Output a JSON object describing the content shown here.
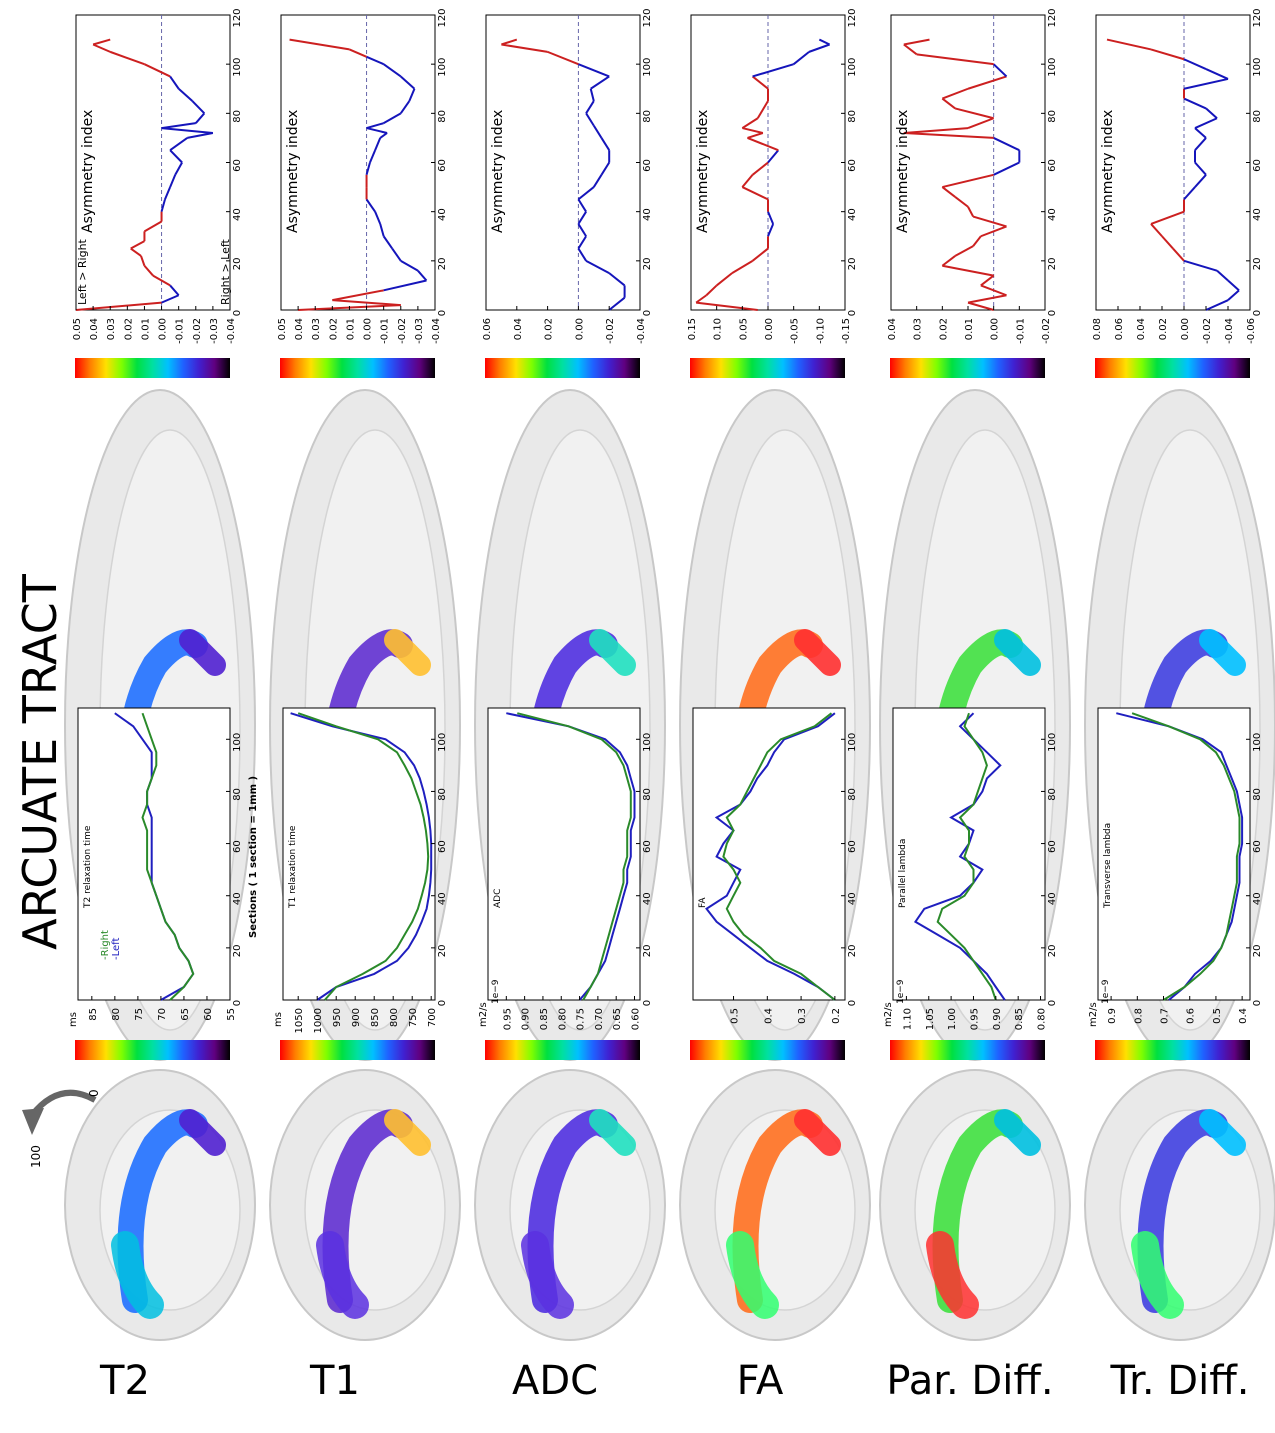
{
  "title": "ARCUATE TRACT",
  "rotation": {
    "start": "0",
    "end": "100"
  },
  "colors": {
    "left": "#1f1fbf",
    "right": "#2a8a2a",
    "asym_pos": "#cc2020",
    "asym_neg": "#1515bb"
  },
  "legend": {
    "right": "-Right",
    "left": "-Left"
  },
  "xlabel": "Sections ( 1 section = 1mm )",
  "asym_ylabel": "Asymmetry index",
  "asym_annot_top": "Left > Right",
  "asym_annot_bottom": "Right > Left",
  "chart_data": [
    {
      "id": "t2",
      "label": "T2",
      "type": "line",
      "ylabel": "T2 relaxation time",
      "unit": "ms",
      "exp": "",
      "ylim": [
        55,
        88
      ],
      "yticks": [
        "85",
        "80",
        "75",
        "70",
        "65",
        "60",
        "55"
      ],
      "ytick_vals": [
        85,
        80,
        75,
        70,
        65,
        60,
        55
      ],
      "x": [
        0,
        5,
        10,
        15,
        20,
        25,
        30,
        35,
        40,
        45,
        50,
        55,
        60,
        65,
        70,
        75,
        80,
        85,
        90,
        95,
        100,
        105,
        110
      ],
      "series": [
        {
          "name": "-Left",
          "values": [
            70,
            65,
            63,
            64,
            66,
            67,
            69,
            70,
            71,
            72,
            72,
            72,
            72,
            72,
            72,
            73,
            73,
            72,
            72,
            72,
            74,
            76,
            80
          ]
        },
        {
          "name": "-Right",
          "values": [
            68,
            65,
            63,
            64,
            66,
            67,
            69,
            70,
            71,
            72,
            73,
            73,
            73,
            73,
            74,
            73,
            73,
            72,
            71,
            71,
            72,
            73,
            74
          ]
        }
      ],
      "asym": {
        "ylim": [
          -0.04,
          0.05
        ],
        "yticks": [
          "0.05",
          "0.04",
          "0.03",
          "0.02",
          "0.01",
          "0.00",
          "-0.01",
          "-0.02",
          "-0.03",
          "-0.04"
        ],
        "ytick_vals": [
          0.05,
          0.04,
          0.03,
          0.02,
          0.01,
          0.0,
          -0.01,
          -0.02,
          -0.03,
          -0.04
        ],
        "x": [
          0,
          3,
          6,
          10,
          14,
          18,
          22,
          25,
          28,
          32,
          36,
          40,
          45,
          50,
          55,
          60,
          65,
          70,
          72,
          74,
          76,
          80,
          85,
          90,
          95,
          100,
          105,
          108,
          110
        ],
        "values": [
          0.05,
          0.0,
          -0.01,
          -0.005,
          0.005,
          0.01,
          0.012,
          0.018,
          0.01,
          0.01,
          0.0,
          0.0,
          -0.002,
          -0.005,
          -0.008,
          -0.012,
          -0.005,
          -0.015,
          -0.03,
          0.0,
          -0.02,
          -0.025,
          -0.018,
          -0.01,
          -0.005,
          0.01,
          0.03,
          0.04,
          0.03
        ]
      }
    },
    {
      "id": "t1",
      "label": "T1",
      "type": "line",
      "ylabel": "T1 relaxation time",
      "unit": "ms",
      "exp": "",
      "ylim": [
        690,
        1090
      ],
      "yticks": [
        "1050",
        "1000",
        "950",
        "900",
        "850",
        "800",
        "750",
        "700"
      ],
      "ytick_vals": [
        1050,
        1000,
        950,
        900,
        850,
        800,
        750,
        700
      ],
      "x": [
        0,
        5,
        10,
        15,
        20,
        25,
        30,
        35,
        40,
        45,
        50,
        55,
        60,
        65,
        70,
        75,
        80,
        85,
        90,
        95,
        100,
        105,
        110
      ],
      "series": [
        {
          "name": "-Left",
          "values": [
            1000,
            950,
            850,
            790,
            760,
            740,
            725,
            712,
            706,
            702,
            700,
            700,
            700,
            702,
            706,
            712,
            720,
            730,
            745,
            770,
            820,
            960,
            1070
          ]
        },
        {
          "name": "-Right",
          "values": [
            980,
            950,
            880,
            820,
            790,
            770,
            750,
            735,
            725,
            716,
            710,
            708,
            710,
            714,
            720,
            728,
            740,
            752,
            770,
            790,
            840,
            950,
            1050
          ]
        }
      ],
      "asym": {
        "ylim": [
          -0.04,
          0.05
        ],
        "yticks": [
          "0.05",
          "0.04",
          "0.03",
          "0.02",
          "0.01",
          "0.00",
          "-0.01",
          "-0.02",
          "-0.03",
          "-0.04"
        ],
        "ytick_vals": [
          0.05,
          0.04,
          0.03,
          0.02,
          0.01,
          0.0,
          -0.01,
          -0.02,
          -0.03,
          -0.04
        ],
        "x": [
          0,
          2,
          4,
          8,
          12,
          16,
          20,
          25,
          30,
          35,
          40,
          45,
          50,
          55,
          60,
          65,
          70,
          72,
          74,
          76,
          80,
          85,
          90,
          95,
          100,
          103,
          106,
          110
        ],
        "values": [
          0.04,
          -0.02,
          0.02,
          -0.01,
          -0.035,
          -0.03,
          -0.02,
          -0.015,
          -0.01,
          -0.008,
          -0.005,
          0.0,
          0.0,
          0.0,
          -0.002,
          -0.005,
          -0.008,
          -0.012,
          0.0,
          -0.01,
          -0.02,
          -0.025,
          -0.028,
          -0.02,
          -0.01,
          0.0,
          0.01,
          0.045
        ]
      }
    },
    {
      "id": "adc",
      "label": "ADC",
      "type": "line",
      "ylabel": "ADC",
      "unit": "m2/s",
      "exp": "1e−9",
      "ylim": [
        0.585,
        1.0
      ],
      "yticks": [
        "0.95",
        "0.90",
        "0.85",
        "0.80",
        "0.75",
        "0.70",
        "0.65",
        "0.60"
      ],
      "ytick_vals": [
        0.95,
        0.9,
        0.85,
        0.8,
        0.75,
        0.7,
        0.65,
        0.6
      ],
      "x": [
        0,
        5,
        10,
        15,
        20,
        25,
        30,
        35,
        40,
        45,
        50,
        55,
        60,
        65,
        70,
        75,
        80,
        85,
        90,
        95,
        100,
        105,
        110
      ],
      "series": [
        {
          "name": "-Left",
          "values": [
            0.75,
            0.72,
            0.7,
            0.68,
            0.67,
            0.66,
            0.65,
            0.64,
            0.63,
            0.62,
            0.62,
            0.61,
            0.61,
            0.61,
            0.6,
            0.6,
            0.6,
            0.61,
            0.62,
            0.64,
            0.68,
            0.78,
            0.95
          ]
        },
        {
          "name": "-Right",
          "values": [
            0.74,
            0.72,
            0.7,
            0.69,
            0.68,
            0.67,
            0.66,
            0.65,
            0.64,
            0.63,
            0.63,
            0.62,
            0.62,
            0.62,
            0.61,
            0.61,
            0.61,
            0.62,
            0.63,
            0.65,
            0.69,
            0.78,
            0.92
          ]
        }
      ],
      "asym": {
        "ylim": [
          -0.04,
          0.06
        ],
        "yticks": [
          "0.06",
          "0.04",
          "0.02",
          "0.00",
          "-0.02",
          "-0.04"
        ],
        "ytick_vals": [
          0.06,
          0.04,
          0.02,
          0.0,
          -0.02,
          -0.04
        ],
        "x": [
          0,
          5,
          10,
          15,
          20,
          25,
          30,
          35,
          40,
          45,
          50,
          55,
          60,
          65,
          70,
          75,
          80,
          85,
          90,
          95,
          100,
          105,
          108,
          110
        ],
        "values": [
          -0.02,
          -0.03,
          -0.03,
          -0.02,
          -0.005,
          0.0,
          -0.005,
          0.0,
          -0.005,
          0.0,
          -0.01,
          -0.015,
          -0.02,
          -0.02,
          -0.015,
          -0.01,
          -0.005,
          -0.01,
          -0.008,
          -0.02,
          0.0,
          0.02,
          0.05,
          0.04
        ]
      }
    },
    {
      "id": "fa",
      "label": "FA",
      "type": "line",
      "ylabel": "FA",
      "unit": "",
      "exp": "",
      "ylim": [
        0.17,
        0.62
      ],
      "yticks": [
        "0.5",
        "0.4",
        "0.3",
        "0.2"
      ],
      "ytick_vals": [
        0.5,
        0.4,
        0.3,
        0.2
      ],
      "x": [
        0,
        5,
        10,
        15,
        20,
        25,
        30,
        35,
        40,
        45,
        50,
        55,
        60,
        65,
        70,
        75,
        80,
        85,
        90,
        95,
        100,
        105,
        110
      ],
      "series": [
        {
          "name": "-Left",
          "values": [
            0.2,
            0.25,
            0.32,
            0.4,
            0.45,
            0.5,
            0.55,
            0.58,
            0.52,
            0.5,
            0.48,
            0.55,
            0.53,
            0.5,
            0.55,
            0.48,
            0.45,
            0.43,
            0.4,
            0.38,
            0.35,
            0.25,
            0.2
          ]
        },
        {
          "name": "-Right",
          "values": [
            0.2,
            0.25,
            0.3,
            0.38,
            0.42,
            0.47,
            0.5,
            0.52,
            0.5,
            0.48,
            0.5,
            0.53,
            0.52,
            0.5,
            0.52,
            0.48,
            0.46,
            0.44,
            0.42,
            0.4,
            0.36,
            0.26,
            0.21
          ]
        }
      ],
      "asym": {
        "ylim": [
          -0.15,
          0.15
        ],
        "yticks": [
          "0.15",
          "0.10",
          "0.05",
          "0.00",
          "-0.05",
          "-0.10",
          "-0.15"
        ],
        "ytick_vals": [
          0.15,
          0.1,
          0.05,
          0.0,
          -0.05,
          -0.1,
          -0.15
        ],
        "x": [
          0,
          3,
          6,
          10,
          15,
          20,
          25,
          30,
          35,
          40,
          45,
          50,
          55,
          60,
          65,
          70,
          72,
          74,
          78,
          85,
          90,
          95,
          100,
          105,
          108,
          110
        ],
        "values": [
          0.02,
          0.14,
          0.12,
          0.1,
          0.07,
          0.03,
          0.0,
          0.0,
          -0.01,
          0.0,
          0.0,
          0.05,
          0.03,
          0.0,
          -0.02,
          0.04,
          0.01,
          0.05,
          0.02,
          0.0,
          0.0,
          0.03,
          -0.05,
          -0.08,
          -0.12,
          -0.1
        ]
      }
    },
    {
      "id": "par",
      "label": "Par. Diff.",
      "type": "line",
      "ylabel": "Parallel lambda",
      "unit": "m2/s",
      "exp": "1e−9",
      "ylim": [
        0.79,
        1.13
      ],
      "yticks": [
        "1.10",
        "1.05",
        "1.00",
        "0.95",
        "0.90",
        "0.85",
        "0.80"
      ],
      "ytick_vals": [
        1.1,
        1.05,
        1.0,
        0.95,
        0.9,
        0.85,
        0.8
      ],
      "x": [
        0,
        5,
        10,
        15,
        20,
        25,
        30,
        35,
        40,
        45,
        50,
        55,
        60,
        65,
        70,
        75,
        80,
        85,
        90,
        95,
        100,
        105,
        110
      ],
      "series": [
        {
          "name": "-Left",
          "values": [
            0.88,
            0.9,
            0.92,
            0.95,
            0.98,
            1.03,
            1.08,
            1.06,
            0.98,
            0.95,
            0.93,
            0.98,
            0.96,
            0.95,
            1.0,
            0.95,
            0.93,
            0.92,
            0.89,
            0.92,
            0.95,
            0.98,
            0.95
          ]
        },
        {
          "name": "-Right",
          "values": [
            0.9,
            0.91,
            0.93,
            0.95,
            0.97,
            1.0,
            1.03,
            1.02,
            0.97,
            0.95,
            0.95,
            0.97,
            0.96,
            0.96,
            0.98,
            0.95,
            0.94,
            0.93,
            0.92,
            0.93,
            0.95,
            0.97,
            0.96
          ]
        }
      ],
      "asym": {
        "ylim": [
          -0.02,
          0.04
        ],
        "yticks": [
          "0.04",
          "0.03",
          "0.02",
          "0.01",
          "0.00",
          "-0.01",
          "-0.02"
        ],
        "ytick_vals": [
          0.04,
          0.03,
          0.02,
          0.01,
          0.0,
          -0.01,
          -0.02
        ],
        "x": [
          0,
          3,
          6,
          10,
          14,
          18,
          22,
          26,
          30,
          34,
          38,
          42,
          46,
          50,
          55,
          60,
          65,
          70,
          72,
          74,
          78,
          82,
          86,
          90,
          95,
          100,
          104,
          108,
          110
        ],
        "values": [
          0.0,
          0.01,
          -0.005,
          0.005,
          0.0,
          0.02,
          0.015,
          0.008,
          0.005,
          -0.005,
          0.008,
          0.01,
          0.015,
          0.02,
          0.0,
          -0.01,
          -0.01,
          0.0,
          0.035,
          0.01,
          0.0,
          0.015,
          0.02,
          0.01,
          -0.005,
          0.0,
          0.03,
          0.035,
          0.025
        ]
      }
    },
    {
      "id": "tr",
      "label": "Tr. Diff.",
      "type": "line",
      "ylabel": "Transverse lambda",
      "unit": "m2/s",
      "exp": "1e−9",
      "ylim": [
        0.37,
        0.95
      ],
      "yticks": [
        "0.9",
        "0.8",
        "0.7",
        "0.6",
        "0.5",
        "0.4"
      ],
      "ytick_vals": [
        0.9,
        0.8,
        0.7,
        0.6,
        0.5,
        0.4
      ],
      "x": [
        0,
        5,
        10,
        15,
        20,
        25,
        30,
        35,
        40,
        45,
        50,
        55,
        60,
        65,
        70,
        75,
        80,
        85,
        90,
        95,
        100,
        105,
        110
      ],
      "series": [
        {
          "name": "-Left",
          "values": [
            0.68,
            0.62,
            0.58,
            0.52,
            0.48,
            0.46,
            0.44,
            0.43,
            0.42,
            0.41,
            0.41,
            0.41,
            0.4,
            0.4,
            0.4,
            0.41,
            0.42,
            0.44,
            0.46,
            0.48,
            0.55,
            0.68,
            0.88
          ]
        },
        {
          "name": "-Right",
          "values": [
            0.7,
            0.62,
            0.56,
            0.51,
            0.48,
            0.46,
            0.45,
            0.44,
            0.43,
            0.42,
            0.42,
            0.42,
            0.41,
            0.41,
            0.41,
            0.42,
            0.43,
            0.45,
            0.47,
            0.5,
            0.56,
            0.68,
            0.82
          ]
        }
      ],
      "asym": {
        "ylim": [
          -0.06,
          0.08
        ],
        "yticks": [
          "0.08",
          "0.06",
          "0.04",
          "0.02",
          "0.00",
          "-0.02",
          "-0.04",
          "-0.06"
        ],
        "ytick_vals": [
          0.08,
          0.06,
          0.04,
          0.02,
          0.0,
          -0.02,
          -0.04,
          -0.06
        ],
        "x": [
          0,
          4,
          8,
          12,
          16,
          20,
          25,
          30,
          35,
          40,
          45,
          50,
          55,
          60,
          65,
          70,
          74,
          78,
          82,
          86,
          90,
          94,
          98,
          102,
          106,
          110
        ],
        "values": [
          -0.02,
          -0.04,
          -0.05,
          -0.04,
          -0.03,
          0.0,
          0.01,
          0.02,
          0.03,
          0.0,
          0.0,
          -0.01,
          -0.02,
          -0.01,
          -0.01,
          -0.02,
          -0.01,
          -0.03,
          -0.02,
          0.0,
          0.0,
          -0.04,
          -0.02,
          0.0,
          0.03,
          0.07
        ]
      }
    }
  ]
}
